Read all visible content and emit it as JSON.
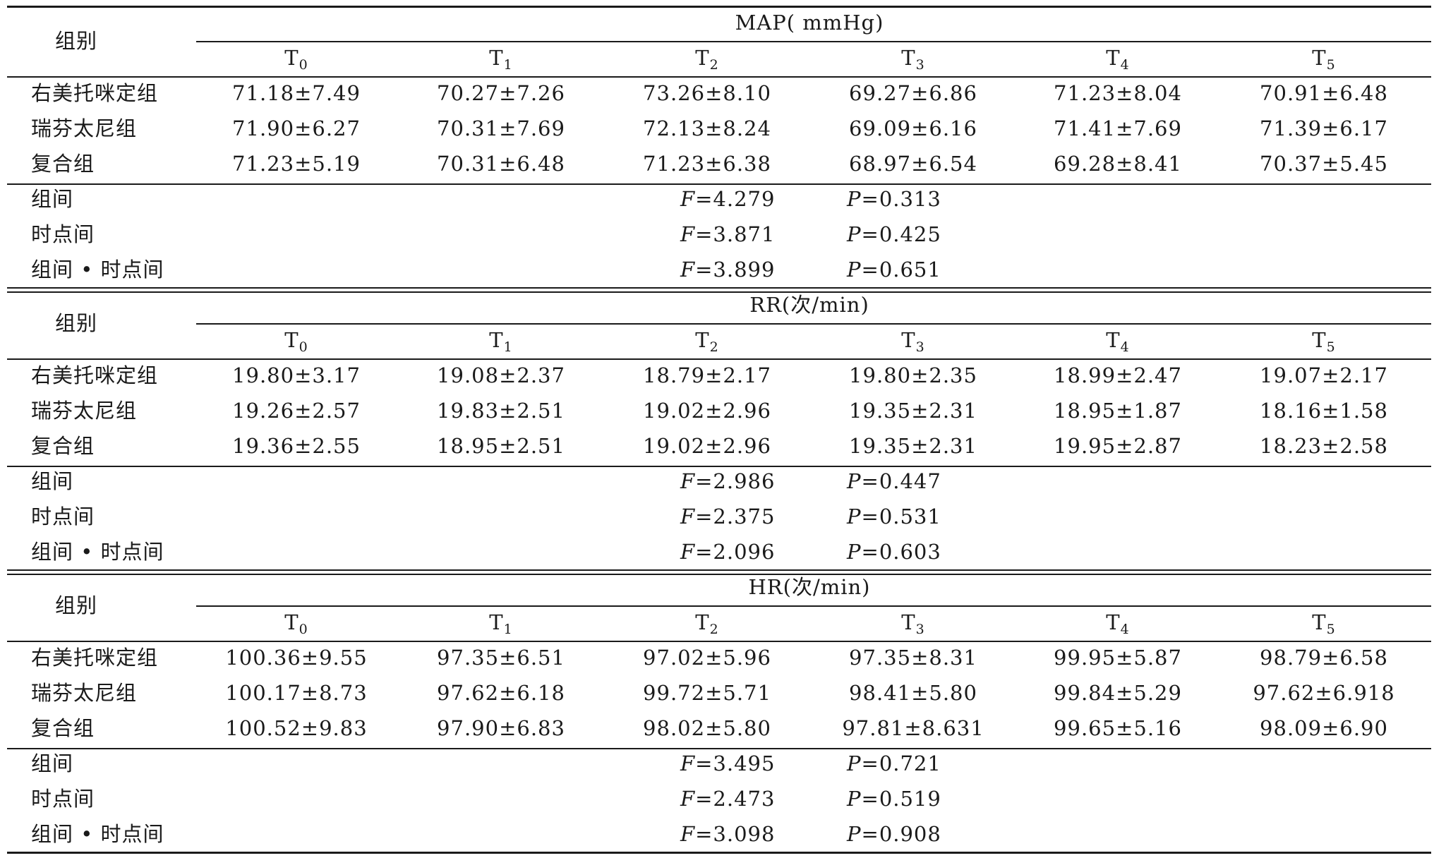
{
  "group_header": "组别",
  "time_points": [
    {
      "base": "T",
      "sub": "0"
    },
    {
      "base": "T",
      "sub": "1"
    },
    {
      "base": "T",
      "sub": "2"
    },
    {
      "base": "T",
      "sub": "3"
    },
    {
      "base": "T",
      "sub": "4"
    },
    {
      "base": "T",
      "sub": "5"
    }
  ],
  "row_labels": [
    "右美托咪定组",
    "瑞芬太尼组",
    "复合组"
  ],
  "stat_labels": [
    "组间",
    "时点间",
    "组间 • 时点间"
  ],
  "stat_letters": {
    "f": "F",
    "p": "P"
  },
  "sections": [
    {
      "title": "MAP( mmHg)",
      "rows": [
        [
          "71.18±7.49",
          "70.27±7.26",
          "73.26±8.10",
          "69.27±6.86",
          "71.23±8.04",
          "70.91±6.48"
        ],
        [
          "71.90±6.27",
          "70.31±7.69",
          "72.13±8.24",
          "69.09±6.16",
          "71.41±7.69",
          "71.39±6.17"
        ],
        [
          "71.23±5.19",
          "70.31±6.48",
          "71.23±6.38",
          "68.97±6.54",
          "69.28±8.41",
          "70.37±5.45"
        ]
      ],
      "stats": [
        {
          "f": "=4.279",
          "p": "=0.313"
        },
        {
          "f": "=3.871",
          "p": "=0.425"
        },
        {
          "f": "=3.899",
          "p": "=0.651"
        }
      ]
    },
    {
      "title": "RR(次/min)",
      "rows": [
        [
          "19.80±3.17",
          "19.08±2.37",
          "18.79±2.17",
          "19.80±2.35",
          "18.99±2.47",
          "19.07±2.17"
        ],
        [
          "19.26±2.57",
          "19.83±2.51",
          "19.02±2.96",
          "19.35±2.31",
          "18.95±1.87",
          "18.16±1.58"
        ],
        [
          "19.36±2.55",
          "18.95±2.51",
          "19.02±2.96",
          "19.35±2.31",
          "19.95±2.87",
          "18.23±2.58"
        ]
      ],
      "stats": [
        {
          "f": "=2.986",
          "p": "=0.447"
        },
        {
          "f": "=2.375",
          "p": "=0.531"
        },
        {
          "f": "=2.096",
          "p": "=0.603"
        }
      ]
    },
    {
      "title": "HR(次/min)",
      "rows": [
        [
          "100.36±9.55",
          "97.35±6.51",
          "97.02±5.96",
          "97.35±8.31",
          "99.95±5.87",
          "98.79±6.58"
        ],
        [
          "100.17±8.73",
          "97.62±6.18",
          "99.72±5.71",
          "98.41±5.80",
          "99.84±5.29",
          "97.62±6.918"
        ],
        [
          "100.52±9.83",
          "97.90±6.83",
          "98.02±5.80",
          "97.81±8.631",
          "99.65±5.16",
          "98.09±6.90"
        ]
      ],
      "stats": [
        {
          "f": "=3.495",
          "p": "=0.721"
        },
        {
          "f": "=2.473",
          "p": "=0.519"
        },
        {
          "f": "=3.098",
          "p": "=0.908"
        }
      ]
    }
  ]
}
